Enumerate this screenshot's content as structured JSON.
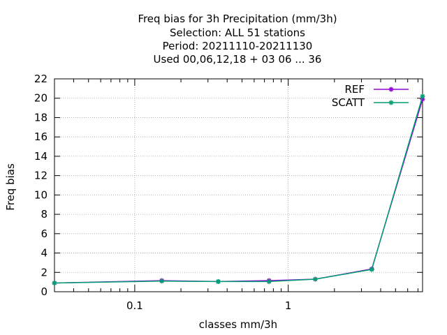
{
  "chart_data": {
    "type": "line",
    "title_lines": [
      "Freq bias  for 3h Precipitation (mm/3h)",
      "Selection: ALL     51 stations",
      "Period: 20211110-20211130",
      "Used  00,06,12,18 + 03 06 ... 36"
    ],
    "xlabel": "classes mm/3h",
    "ylabel": "Freq bias",
    "x_scale": "log",
    "xlim": [
      0.03,
      7.5
    ],
    "ylim": [
      0,
      22
    ],
    "x_tick_labels": [
      {
        "value": 0.1,
        "label": "0.1"
      },
      {
        "value": 1,
        "label": "1"
      }
    ],
    "y_ticks": [
      0,
      2,
      4,
      6,
      8,
      10,
      12,
      14,
      16,
      18,
      20,
      22
    ],
    "grid": true,
    "legend_position": "top-right",
    "series": [
      {
        "name": "REF",
        "color": "#9400d3",
        "x": [
          0.03,
          0.15,
          0.35,
          0.75,
          1.5,
          3.5,
          7.5
        ],
        "y": [
          0.9,
          1.15,
          1.05,
          1.15,
          1.3,
          2.35,
          19.9
        ]
      },
      {
        "name": "SCATT",
        "color": "#009e73",
        "x": [
          0.03,
          0.15,
          0.35,
          0.75,
          1.5,
          3.5,
          7.5
        ],
        "y": [
          0.9,
          1.1,
          1.05,
          1.05,
          1.3,
          2.3,
          20.2
        ]
      }
    ]
  }
}
